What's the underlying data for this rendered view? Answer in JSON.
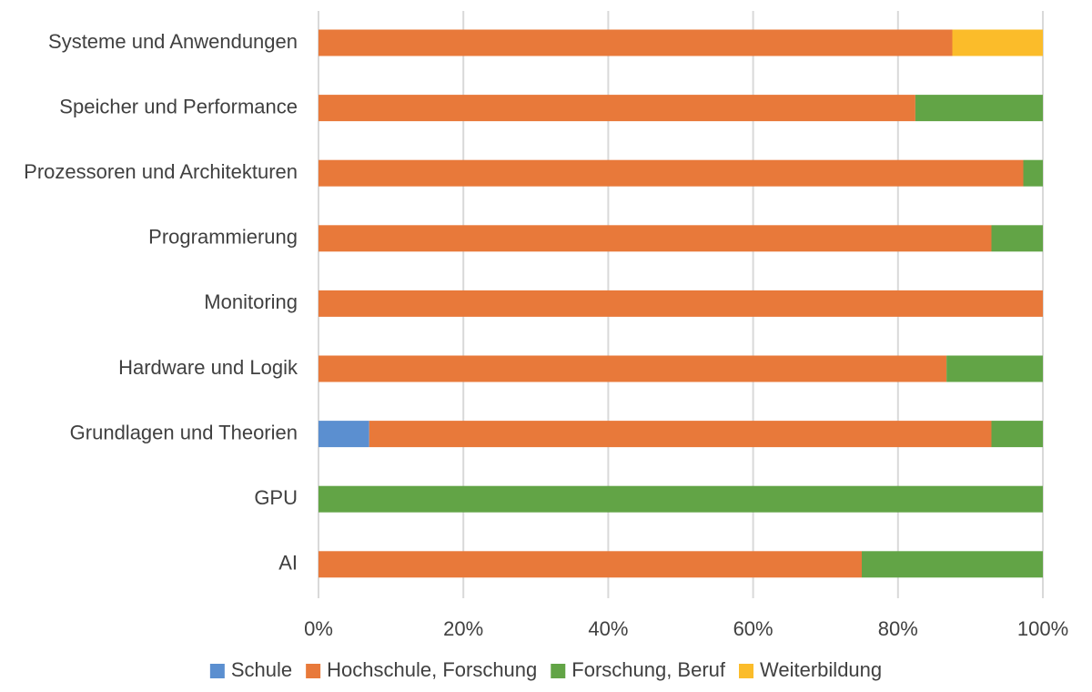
{
  "chart_data": {
    "type": "bar",
    "orientation": "horizontal",
    "stacked": "percent",
    "title": "",
    "xlabel": "",
    "ylabel": "",
    "xlim": [
      0,
      100
    ],
    "grid": true,
    "legend_position": "bottom",
    "x_ticks": [
      "0%",
      "20%",
      "40%",
      "60%",
      "80%",
      "100%"
    ],
    "categories": [
      "Systeme und Anwendungen",
      "Speicher und Performance",
      "Prozessoren und Architekturen",
      "Programmierung",
      "Monitoring",
      "Hardware und Logik",
      "Grundlagen und Theorien",
      "GPU",
      "AI"
    ],
    "series": [
      {
        "name": "Schule",
        "color": "#5b8fd0",
        "values": [
          0,
          0,
          0,
          0,
          0,
          0,
          7,
          0,
          0
        ]
      },
      {
        "name": "Hochschule, Forschung",
        "color": "#e8793a",
        "values": [
          87.5,
          82.4,
          97.3,
          92.9,
          100,
          86.7,
          85.9,
          0,
          75
        ]
      },
      {
        "name": "Forschung, Beruf",
        "color": "#62a446",
        "values": [
          0,
          17.6,
          2.7,
          7.1,
          0,
          13.3,
          7.1,
          100,
          25
        ]
      },
      {
        "name": "Weiterbildung",
        "color": "#fbbc2a",
        "values": [
          12.5,
          0,
          0,
          0,
          0,
          0,
          0,
          0,
          0
        ]
      }
    ]
  }
}
